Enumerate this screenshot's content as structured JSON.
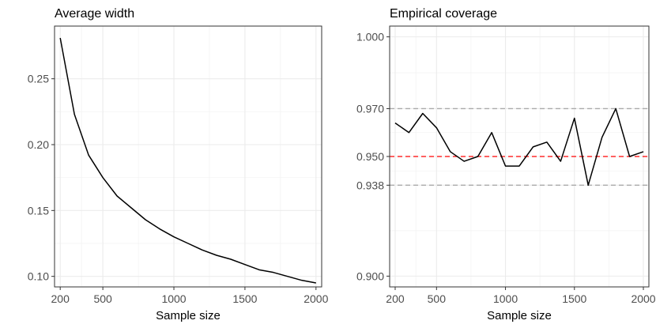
{
  "chart_data": [
    {
      "type": "line",
      "title": "Average width",
      "xlabel": "Sample size",
      "ylabel": "",
      "xlim": [
        160,
        2040
      ],
      "ylim": [
        0.092,
        0.29
      ],
      "xticks": [
        200,
        500,
        1000,
        1500,
        2000
      ],
      "xtick_labels": [
        "200",
        "500",
        "1000",
        "1500",
        "2000"
      ],
      "yticks": [
        0.1,
        0.15,
        0.2,
        0.25
      ],
      "ytick_labels": [
        "0.10",
        "0.15",
        "0.20",
        "0.25"
      ],
      "grid": true,
      "series": [
        {
          "x": [
            200,
            300,
            400,
            500,
            600,
            700,
            800,
            900,
            1000,
            1100,
            1200,
            1300,
            1400,
            1500,
            1600,
            1700,
            1800,
            1900,
            2000
          ],
          "y": [
            0.281,
            0.223,
            0.192,
            0.175,
            0.161,
            0.152,
            0.143,
            0.136,
            0.13,
            0.125,
            0.12,
            0.116,
            0.113,
            0.109,
            0.105,
            0.103,
            0.1,
            0.097,
            0.095
          ],
          "color": "#000000"
        }
      ],
      "reference_lines": []
    },
    {
      "type": "line",
      "title": "Empirical coverage",
      "xlabel": "Sample size",
      "ylabel": "",
      "xlim": [
        160,
        2040
      ],
      "ylim": [
        0.8955,
        1.0045
      ],
      "xticks": [
        200,
        500,
        1000,
        1500,
        2000
      ],
      "xtick_labels": [
        "200",
        "500",
        "1000",
        "1500",
        "2000"
      ],
      "yticks": [
        0.9,
        0.938,
        0.95,
        0.97,
        1.0
      ],
      "ytick_labels": [
        "0.900",
        "0.938",
        "0.950",
        "0.970",
        "1.000"
      ],
      "grid": true,
      "series": [
        {
          "x": [
            200,
            300,
            400,
            500,
            600,
            700,
            800,
            900,
            1000,
            1100,
            1200,
            1300,
            1400,
            1500,
            1600,
            1700,
            1800,
            1900,
            2000
          ],
          "y": [
            0.964,
            0.96,
            0.968,
            0.962,
            0.952,
            0.948,
            0.95,
            0.96,
            0.946,
            0.946,
            0.954,
            0.956,
            0.948,
            0.966,
            0.938,
            0.958,
            0.97,
            0.95,
            0.952
          ],
          "color": "#000000"
        }
      ],
      "reference_lines": [
        {
          "y": 0.97,
          "color": "#aaaaaa",
          "style": "dashed"
        },
        {
          "y": 0.95,
          "color": "#ff0000",
          "style": "dashed"
        },
        {
          "y": 0.938,
          "color": "#aaaaaa",
          "style": "dashed"
        }
      ]
    }
  ]
}
